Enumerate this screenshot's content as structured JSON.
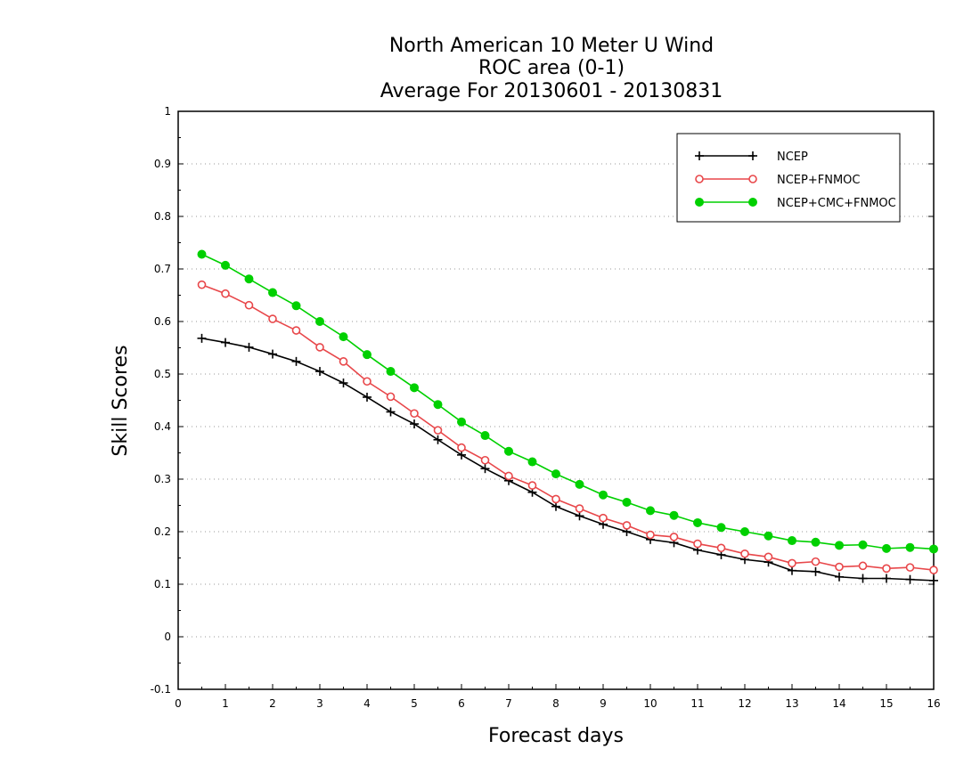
{
  "chart_data": {
    "type": "line",
    "title_lines": [
      "North American 10 Meter U Wind",
      "ROC area (0-1)",
      "Average For 20130601 - 20130831"
    ],
    "xlabel": "Forecast days",
    "ylabel": "Skill Scores",
    "xlim": [
      0,
      16
    ],
    "ylim": [
      -0.1,
      1
    ],
    "x_ticks": [
      0,
      1,
      2,
      3,
      4,
      5,
      6,
      7,
      8,
      9,
      10,
      11,
      12,
      13,
      14,
      15,
      16
    ],
    "x_tick_labels": [
      "0",
      "1",
      "2",
      "3",
      "4",
      "5",
      "6",
      "7",
      "8",
      "9",
      "10",
      "11",
      "12",
      "13",
      "14",
      "15",
      "16"
    ],
    "y_ticks": [
      -0.1,
      0,
      0.1,
      0.2,
      0.3,
      0.4,
      0.5,
      0.6,
      0.7,
      0.8,
      0.9,
      1
    ],
    "y_tick_labels": [
      "-0.1",
      "0",
      "0.1",
      "0.2",
      "0.3",
      "0.4",
      "0.5",
      "0.6",
      "0.7",
      "0.8",
      "0.9",
      "1"
    ],
    "grid": "horizontal dotted",
    "legend_position": "top-right",
    "x": [
      0.5,
      1,
      1.5,
      2,
      2.5,
      3,
      3.5,
      4,
      4.5,
      5,
      5.5,
      6,
      6.5,
      7,
      7.5,
      8,
      8.5,
      9,
      9.5,
      10,
      10.5,
      11,
      11.5,
      12,
      12.5,
      13,
      13.5,
      14,
      14.5,
      15,
      15.5,
      16
    ],
    "series": [
      {
        "name": "NCEP",
        "color": "#000000",
        "marker": "plus",
        "values": [
          0.568,
          0.56,
          0.551,
          0.538,
          0.524,
          0.505,
          0.483,
          0.456,
          0.428,
          0.405,
          0.375,
          0.346,
          0.32,
          0.297,
          0.275,
          0.248,
          0.23,
          0.214,
          0.2,
          0.185,
          0.179,
          0.165,
          0.156,
          0.147,
          0.142,
          0.126,
          0.124,
          0.114,
          0.111,
          0.111,
          0.109,
          0.107
        ]
      },
      {
        "name": "NCEP+FNMOC",
        "color": "#e8474a",
        "marker": "open-circle",
        "values": [
          0.67,
          0.653,
          0.631,
          0.605,
          0.583,
          0.551,
          0.524,
          0.486,
          0.457,
          0.425,
          0.393,
          0.36,
          0.336,
          0.306,
          0.288,
          0.262,
          0.244,
          0.226,
          0.212,
          0.194,
          0.19,
          0.177,
          0.169,
          0.158,
          0.152,
          0.14,
          0.143,
          0.133,
          0.135,
          0.13,
          0.132,
          0.127
        ]
      },
      {
        "name": "NCEP+CMC+FNMOC",
        "color": "#00d000",
        "marker": "filled-circle",
        "values": [
          0.728,
          0.707,
          0.681,
          0.655,
          0.63,
          0.6,
          0.571,
          0.537,
          0.505,
          0.474,
          0.442,
          0.409,
          0.383,
          0.353,
          0.333,
          0.31,
          0.29,
          0.27,
          0.256,
          0.24,
          0.231,
          0.217,
          0.208,
          0.2,
          0.192,
          0.183,
          0.18,
          0.174,
          0.175,
          0.168,
          0.17,
          0.167
        ]
      }
    ]
  }
}
